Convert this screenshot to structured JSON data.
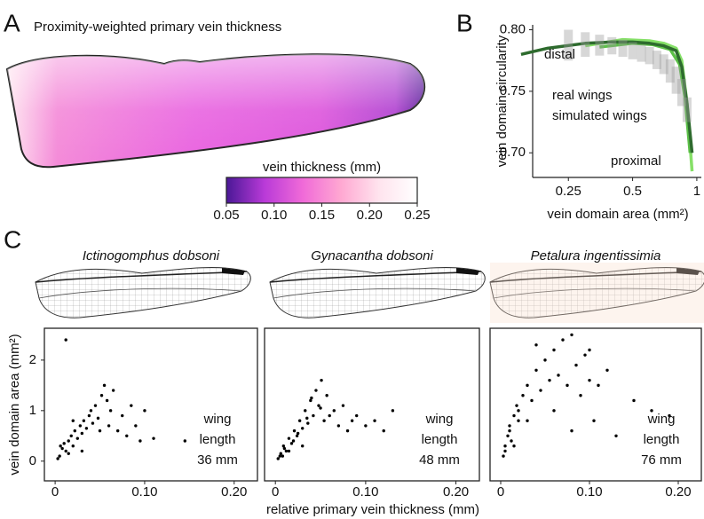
{
  "chart_data": [
    {
      "type": "colorbar",
      "panel_label": "A",
      "title": "Proximity-weighted primary vein thickness",
      "label": "vein thickness (mm)",
      "colors": [
        "#4a1896",
        "#b93ad8",
        "#f06ad8",
        "#ffa8d2",
        "#ffe4ee",
        "#ffffff"
      ],
      "xlim": [
        0.05,
        0.25
      ],
      "xticks": [
        0.05,
        {
          "value": 0.1,
          "label": "0.10"
        },
        0.15,
        {
          "value": 0.2,
          "label": "0.20"
        },
        0.25
      ]
    },
    {
      "type": "line",
      "panel_label": "B",
      "xlabel": "vein domain area (mm²)",
      "ylabel": "vein domain circularity",
      "xscale": "log",
      "xlim": [
        0.17,
        1.05
      ],
      "xticks": [
        0.25,
        0.5,
        1
      ],
      "ylim": [
        0.68,
        0.804
      ],
      "yticks": [
        {
          "value": 0.7,
          "label": "0.70"
        },
        0.75,
        {
          "value": 0.8,
          "label": "0.80"
        }
      ],
      "annotations": [
        "distal",
        "proximal"
      ],
      "series": [
        {
          "name": "real wings",
          "color": "#86e068",
          "x": [
            0.3,
            0.45,
            0.6,
            0.7,
            0.8,
            0.85,
            0.9,
            0.95
          ],
          "values": [
            0.787,
            0.792,
            0.791,
            0.789,
            0.785,
            0.775,
            0.74,
            0.685
          ]
        },
        {
          "color": "#5cc048",
          "x": [
            0.35,
            0.5,
            0.62,
            0.75,
            0.83,
            0.88,
            0.93
          ],
          "values": [
            0.786,
            0.789,
            0.788,
            0.784,
            0.772,
            0.745,
            0.7
          ]
        },
        {
          "color": "#2e6b2e",
          "x": [
            0.15,
            0.2,
            0.3,
            0.4,
            0.5,
            0.6,
            0.7,
            0.8,
            0.85,
            0.9,
            0.95
          ],
          "values": [
            0.78,
            0.785,
            0.789,
            0.79,
            0.79,
            0.789,
            0.787,
            0.783,
            0.77,
            0.74,
            0.7
          ]
        },
        {
          "name": "simulated wings",
          "type": "range",
          "color": "#9a9a9a",
          "x": [
            0.25,
            0.3,
            0.35,
            0.4,
            0.45,
            0.5,
            0.55,
            0.6,
            0.65,
            0.7,
            0.75,
            0.8,
            0.85,
            0.9
          ],
          "low": [
            0.775,
            0.778,
            0.779,
            0.78,
            0.778,
            0.776,
            0.774,
            0.772,
            0.768,
            0.764,
            0.757,
            0.748,
            0.738,
            0.725
          ],
          "high": [
            0.8,
            0.798,
            0.796,
            0.794,
            0.792,
            0.79,
            0.788,
            0.786,
            0.783,
            0.78,
            0.776,
            0.77,
            0.76,
            0.745
          ]
        }
      ]
    },
    {
      "type": "scatter",
      "panel_label": "C",
      "title": "Ictinogomphus dobsoni",
      "ylabel": "vein domain area (mm²)",
      "annotation": [
        "wing",
        "length",
        "36 mm"
      ],
      "color": "#000000",
      "xlim": [
        -0.012,
        0.226
      ],
      "xticks": [
        0,
        {
          "value": 0.1,
          "label": "0.10"
        },
        {
          "value": 0.2,
          "label": "0.20"
        }
      ],
      "ylim": [
        -0.39,
        2.63
      ],
      "yticks": [
        0,
        1,
        2
      ],
      "x": [
        0.005,
        0.008,
        0.01,
        0.012,
        0.015,
        0.018,
        0.02,
        0.022,
        0.025,
        0.028,
        0.03,
        0.032,
        0.035,
        0.038,
        0.04,
        0.042,
        0.045,
        0.048,
        0.05,
        0.052,
        0.055,
        0.058,
        0.06,
        0.062,
        0.065,
        0.07,
        0.075,
        0.08,
        0.085,
        0.09,
        0.095,
        0.1,
        0.11,
        0.015,
        0.003,
        0.006,
        0.02,
        0.03,
        0.145,
        0.012
      ],
      "values": [
        0.1,
        0.25,
        0.35,
        0.2,
        0.4,
        0.5,
        0.3,
        0.6,
        0.45,
        0.7,
        0.55,
        0.8,
        0.65,
        0.9,
        1.0,
        0.75,
        1.1,
        0.85,
        0.6,
        1.3,
        1.5,
        1.2,
        0.7,
        1.0,
        1.4,
        0.6,
        0.9,
        0.5,
        1.1,
        0.7,
        0.4,
        1.0,
        0.45,
        0.15,
        0.05,
        0.3,
        0.8,
        0.2,
        0.4,
        2.4
      ]
    },
    {
      "type": "scatter",
      "title": "Gynacantha dobsoni",
      "xlabel": "relative primary vein thickness (mm)",
      "annotation": [
        "wing",
        "length",
        "48 mm"
      ],
      "color": "#000000",
      "xlim": [
        -0.012,
        0.226
      ],
      "xticks": [
        0,
        {
          "value": 0.1,
          "label": "0.10"
        },
        {
          "value": 0.2,
          "label": "0.20"
        }
      ],
      "ylim": [
        -0.39,
        2.63
      ],
      "x": [
        0.003,
        0.006,
        0.009,
        0.012,
        0.015,
        0.018,
        0.021,
        0.024,
        0.027,
        0.03,
        0.033,
        0.036,
        0.039,
        0.042,
        0.045,
        0.048,
        0.051,
        0.054,
        0.057,
        0.06,
        0.065,
        0.07,
        0.075,
        0.08,
        0.085,
        0.09,
        0.1,
        0.11,
        0.12,
        0.13,
        0.005,
        0.01,
        0.02,
        0.025,
        0.035,
        0.04,
        0.05,
        0.03,
        0.015,
        0.008
      ],
      "values": [
        0.05,
        0.15,
        0.3,
        0.2,
        0.45,
        0.35,
        0.6,
        0.5,
        0.8,
        0.65,
        1.0,
        0.75,
        1.2,
        0.9,
        1.4,
        1.1,
        1.6,
        0.8,
        1.3,
        0.9,
        1.0,
        0.7,
        1.1,
        0.6,
        0.8,
        0.9,
        0.7,
        0.8,
        0.6,
        1.0,
        0.1,
        0.25,
        0.4,
        0.55,
        0.85,
        1.25,
        1.05,
        0.3,
        0.2,
        0.1
      ]
    },
    {
      "type": "scatter",
      "title": "Petalura ingentissimia",
      "annotation": [
        "wing",
        "length",
        "76 mm"
      ],
      "color": "#000000",
      "xlim": [
        -0.012,
        0.226
      ],
      "xticks": [
        0,
        {
          "value": 0.1,
          "label": "0.10"
        },
        {
          "value": 0.2,
          "label": "0.20"
        }
      ],
      "ylim": [
        -0.39,
        2.63
      ],
      "x": [
        0.003,
        0.005,
        0.008,
        0.01,
        0.012,
        0.015,
        0.018,
        0.02,
        0.025,
        0.03,
        0.035,
        0.04,
        0.045,
        0.05,
        0.055,
        0.06,
        0.065,
        0.07,
        0.075,
        0.08,
        0.085,
        0.09,
        0.095,
        0.1,
        0.105,
        0.11,
        0.12,
        0.13,
        0.15,
        0.17,
        0.19,
        0.005,
        0.01,
        0.015,
        0.02,
        0.03,
        0.04,
        0.06,
        0.08,
        0.1
      ],
      "values": [
        0.1,
        0.3,
        0.5,
        0.7,
        0.4,
        0.9,
        1.1,
        0.8,
        1.3,
        1.5,
        1.2,
        1.8,
        1.4,
        2.0,
        1.6,
        2.2,
        1.7,
        2.4,
        1.5,
        2.5,
        1.9,
        1.3,
        2.1,
        1.6,
        0.8,
        1.5,
        1.8,
        0.5,
        1.2,
        1.0,
        0.9,
        0.2,
        0.6,
        0.3,
        1.0,
        0.8,
        2.3,
        1.0,
        0.6,
        2.2
      ]
    }
  ]
}
